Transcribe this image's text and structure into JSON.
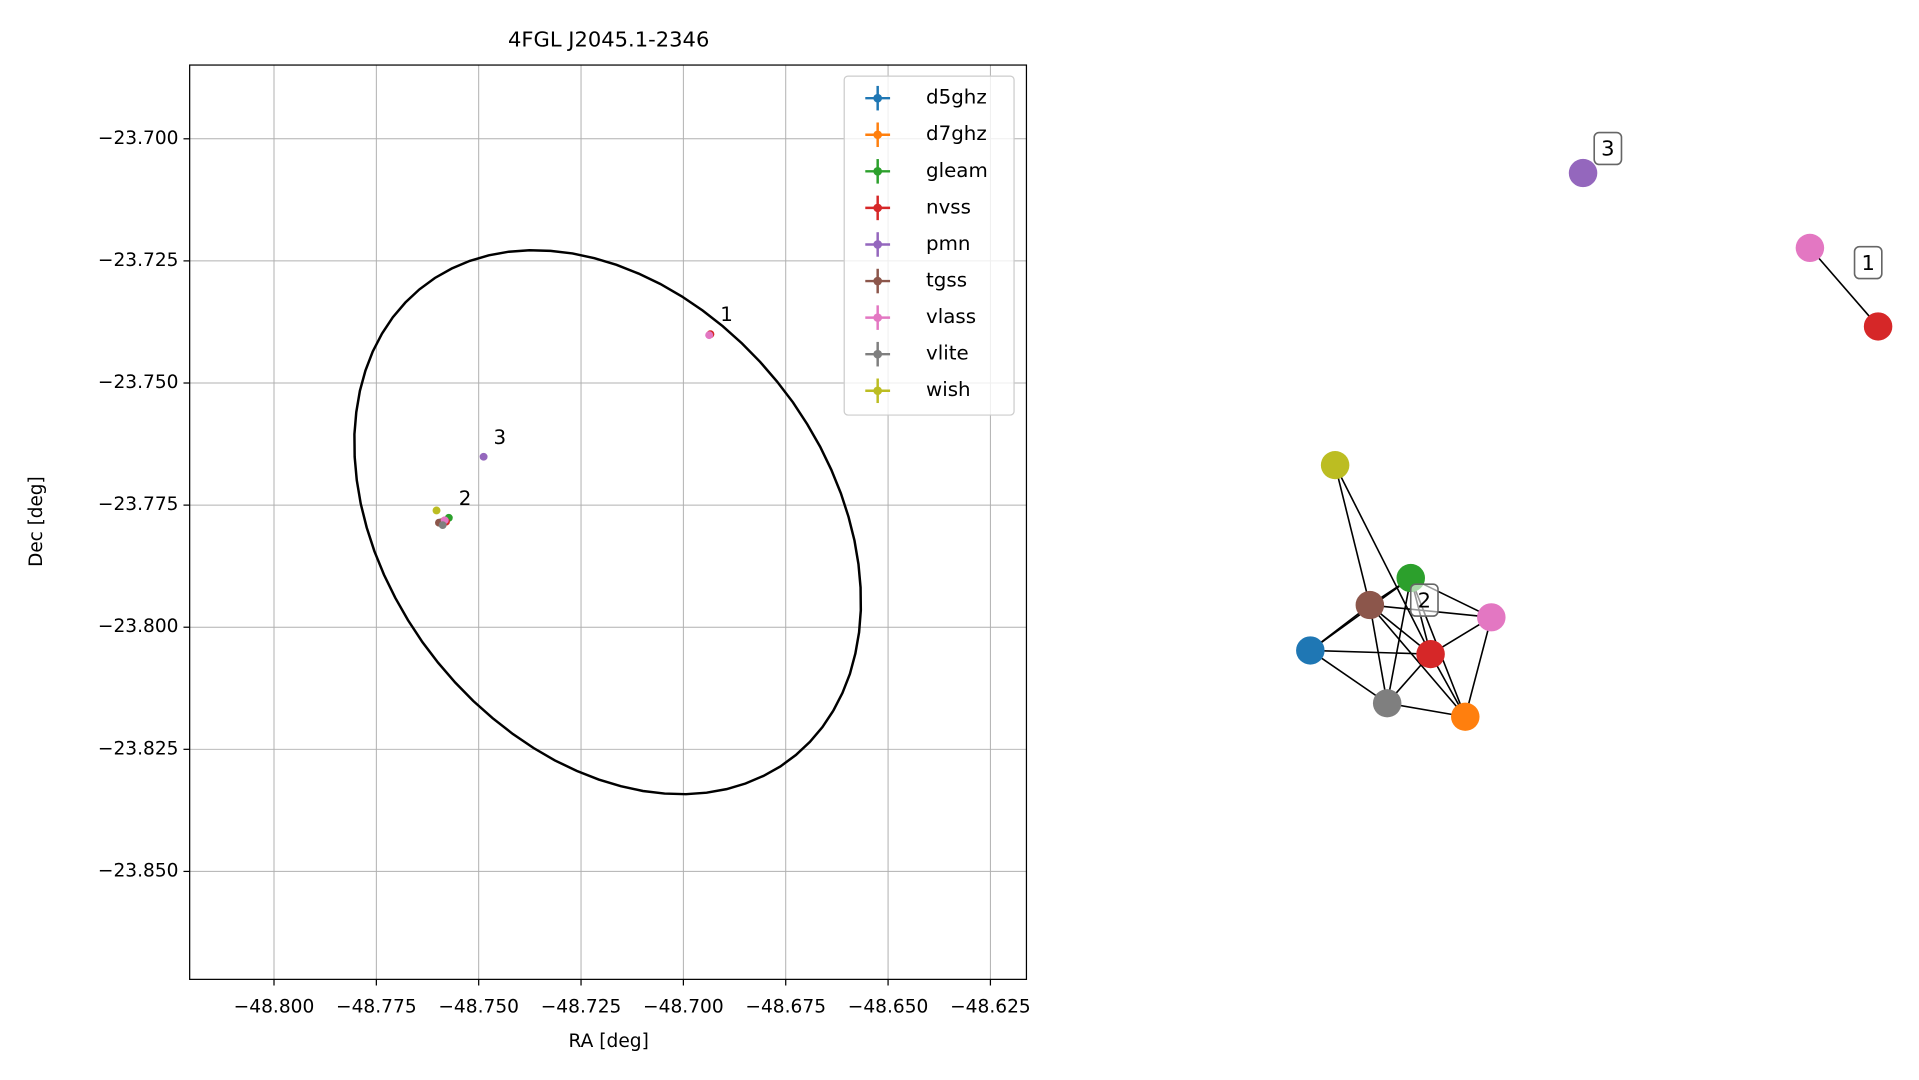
{
  "chart_data": [
    {
      "type": "scatter",
      "title": "4FGL J2045.1-2346",
      "x_label": "RA [deg]",
      "y_label": "Dec [deg]",
      "xlim": [
        -48.8206,
        -48.6162
      ],
      "ylim": [
        -23.8721,
        -23.6849
      ],
      "xticks": [
        {
          "value": -48.8,
          "label": "−48.800"
        },
        {
          "value": -48.775,
          "label": "−48.775"
        },
        {
          "value": -48.75,
          "label": "−48.750"
        },
        {
          "value": -48.725,
          "label": "−48.725"
        },
        {
          "value": -48.7,
          "label": "−48.700"
        },
        {
          "value": -48.675,
          "label": "−48.675"
        },
        {
          "value": -48.65,
          "label": "−48.650"
        },
        {
          "value": -48.625,
          "label": "−48.625"
        }
      ],
      "yticks": [
        {
          "value": -23.7,
          "label": "−23.700"
        },
        {
          "value": -23.725,
          "label": "−23.725"
        },
        {
          "value": -23.75,
          "label": "−23.750"
        },
        {
          "value": -23.775,
          "label": "−23.775"
        },
        {
          "value": -23.8,
          "label": "−23.800"
        },
        {
          "value": -23.825,
          "label": "−23.825"
        },
        {
          "value": -23.85,
          "label": "−23.850"
        }
      ],
      "grid": true,
      "legend": "upper right",
      "series": [
        {
          "name": "d5ghz",
          "color": "#1f77b4",
          "x": [
            -48.7591
          ],
          "y": [
            -23.7785
          ]
        },
        {
          "name": "d7ghz",
          "color": "#ff7f0e",
          "x": [
            -48.7586
          ],
          "y": [
            -23.7783
          ]
        },
        {
          "name": "gleam",
          "color": "#2ca02c",
          "x": [
            -48.7573
          ],
          "y": [
            -23.7776
          ]
        },
        {
          "name": "nvss",
          "color": "#d62728",
          "x": [
            -48.6934,
            -48.758
          ],
          "y": [
            -23.74,
            -23.7784
          ]
        },
        {
          "name": "pmn",
          "color": "#9467bd",
          "x": [
            -48.7488
          ],
          "y": [
            -23.7651
          ]
        },
        {
          "name": "tgss",
          "color": "#8c564b",
          "x": [
            -48.7597
          ],
          "y": [
            -23.7786
          ]
        },
        {
          "name": "vlass",
          "color": "#e377c2",
          "x": [
            -48.6937,
            -48.7583
          ],
          "y": [
            -23.7402,
            -23.7781
          ]
        },
        {
          "name": "vlite",
          "color": "#7f7f7f",
          "x": [
            -48.7588
          ],
          "y": [
            -23.7791
          ]
        },
        {
          "name": "wish",
          "color": "#bcbd22",
          "x": [
            -48.7603
          ],
          "y": [
            -23.7761
          ]
        }
      ],
      "ellipse": {
        "x": -48.7185,
        "y": -23.7785,
        "rx": 0.0673,
        "ry": 0.049,
        "angle": -35,
        "color": "#000000"
      },
      "annotations": [
        {
          "text": "1",
          "x": -48.6934,
          "y": -23.74
        },
        {
          "text": "3",
          "x": -48.7488,
          "y": -23.7651
        },
        {
          "text": "2",
          "x": -48.7573,
          "y": -23.7776
        }
      ]
    },
    {
      "type": "network",
      "groups": [
        {
          "label": "1",
          "nodes": [
            6,
            3
          ],
          "edges": [
            [
              0,
              1
            ]
          ]
        },
        {
          "label": "2",
          "nodes": [
            0,
            1,
            2,
            3,
            5,
            6,
            7,
            8
          ],
          "edges": [
            [
              7,
              4
            ],
            [
              7,
              3
            ],
            [
              4,
              2
            ],
            [
              4,
              0
            ],
            [
              4,
              3
            ],
            [
              4,
              5
            ],
            [
              4,
              6
            ],
            [
              4,
              1
            ],
            [
              0,
              2
            ],
            [
              0,
              3
            ],
            [
              0,
              6
            ],
            [
              2,
              6
            ],
            [
              2,
              5
            ],
            [
              2,
              1
            ],
            [
              3,
              5
            ],
            [
              3,
              6
            ],
            [
              3,
              1
            ],
            [
              6,
              1
            ],
            [
              5,
              1
            ],
            [
              3,
              2
            ]
          ]
        },
        {
          "label": "3",
          "nodes": [
            4
          ],
          "edges": []
        }
      ]
    }
  ]
}
